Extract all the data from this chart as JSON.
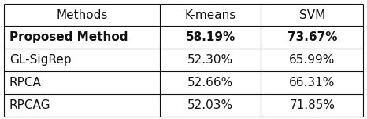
{
  "col_headers": [
    "Methods",
    "K-means",
    "SVM"
  ],
  "rows": [
    {
      "method": "Proposed Method",
      "kmeans": "58.19%",
      "svm": "73.67%",
      "bold": true
    },
    {
      "method": "GL-SigRep",
      "kmeans": "52.30%",
      "svm": "65.99%",
      "bold": false
    },
    {
      "method": "RPCA",
      "kmeans": "52.66%",
      "svm": "66.31%",
      "bold": false
    },
    {
      "method": "RPCAG",
      "kmeans": "52.03%",
      "svm": "71.85%",
      "bold": false
    }
  ],
  "bg_color": "#ffffff",
  "text_color": "#111111",
  "line_color": "#111111",
  "line_width": 0.8,
  "font_size": 11.0,
  "fig_width": 4.66,
  "fig_height": 1.52,
  "dpi": 100
}
